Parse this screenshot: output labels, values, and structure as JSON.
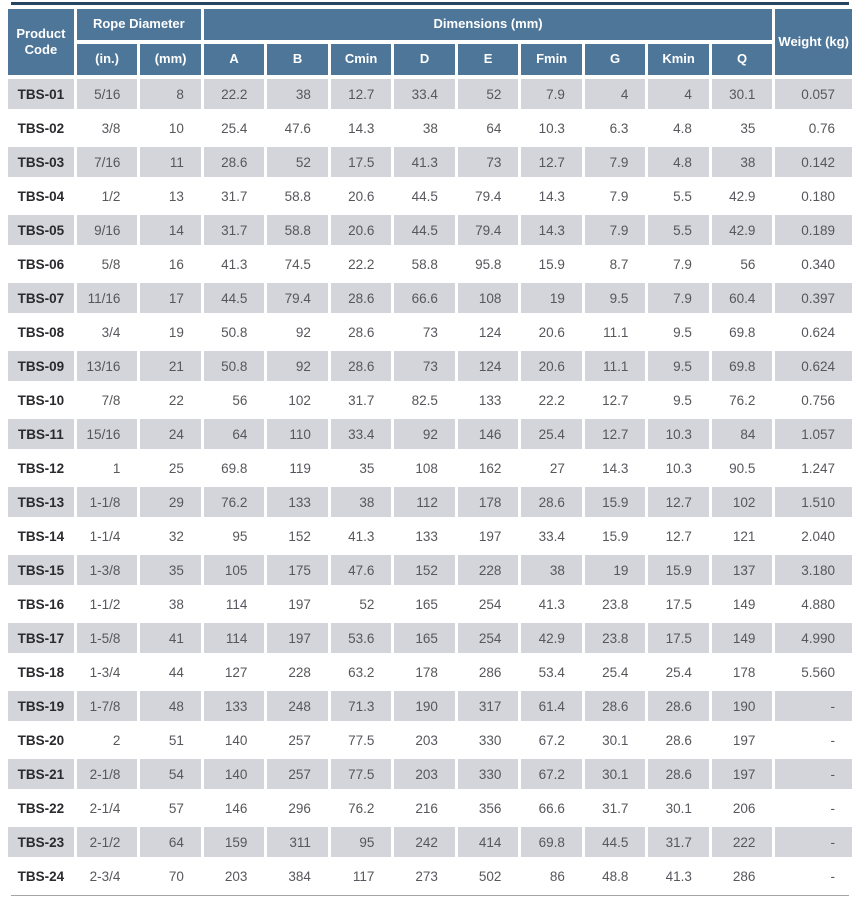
{
  "table": {
    "title": "Product specifications table",
    "header": {
      "product_code": "Product Code",
      "rope_diameter": "Rope Diameter",
      "dimensions": "Dimensions (mm)",
      "weight": "Weight (kg)",
      "subcolumns": [
        "(in.)",
        "(mm)",
        "A",
        "B",
        "Cmin",
        "D",
        "E",
        "Fmin",
        "G",
        "Kmin",
        "Q"
      ]
    },
    "rows": [
      {
        "code": "TBS-01",
        "values": [
          "5/16",
          "8",
          "22.2",
          "38",
          "12.7",
          "33.4",
          "52",
          "7.9",
          "4",
          "4",
          "30.1",
          "0.057"
        ]
      },
      {
        "code": "TBS-02",
        "values": [
          "3/8",
          "10",
          "25.4",
          "47.6",
          "14.3",
          "38",
          "64",
          "10.3",
          "6.3",
          "4.8",
          "35",
          "0.76"
        ]
      },
      {
        "code": "TBS-03",
        "values": [
          "7/16",
          "11",
          "28.6",
          "52",
          "17.5",
          "41.3",
          "73",
          "12.7",
          "7.9",
          "4.8",
          "38",
          "0.142"
        ]
      },
      {
        "code": "TBS-04",
        "values": [
          "1/2",
          "13",
          "31.7",
          "58.8",
          "20.6",
          "44.5",
          "79.4",
          "14.3",
          "7.9",
          "5.5",
          "42.9",
          "0.180"
        ]
      },
      {
        "code": "TBS-05",
        "values": [
          "9/16",
          "14",
          "31.7",
          "58.8",
          "20.6",
          "44.5",
          "79.4",
          "14.3",
          "7.9",
          "5.5",
          "42.9",
          "0.189"
        ]
      },
      {
        "code": "TBS-06",
        "values": [
          "5/8",
          "16",
          "41.3",
          "74.5",
          "22.2",
          "58.8",
          "95.8",
          "15.9",
          "8.7",
          "7.9",
          "56",
          "0.340"
        ]
      },
      {
        "code": "TBS-07",
        "values": [
          "11/16",
          "17",
          "44.5",
          "79.4",
          "28.6",
          "66.6",
          "108",
          "19",
          "9.5",
          "7.9",
          "60.4",
          "0.397"
        ]
      },
      {
        "code": "TBS-08",
        "values": [
          "3/4",
          "19",
          "50.8",
          "92",
          "28.6",
          "73",
          "124",
          "20.6",
          "11.1",
          "9.5",
          "69.8",
          "0.624"
        ]
      },
      {
        "code": "TBS-09",
        "values": [
          "13/16",
          "21",
          "50.8",
          "92",
          "28.6",
          "73",
          "124",
          "20.6",
          "11.1",
          "9.5",
          "69.8",
          "0.624"
        ]
      },
      {
        "code": "TBS-10",
        "values": [
          "7/8",
          "22",
          "56",
          "102",
          "31.7",
          "82.5",
          "133",
          "22.2",
          "12.7",
          "9.5",
          "76.2",
          "0.756"
        ]
      },
      {
        "code": "TBS-11",
        "values": [
          "15/16",
          "24",
          "64",
          "110",
          "33.4",
          "92",
          "146",
          "25.4",
          "12.7",
          "10.3",
          "84",
          "1.057"
        ]
      },
      {
        "code": "TBS-12",
        "values": [
          "1",
          "25",
          "69.8",
          "119",
          "35",
          "108",
          "162",
          "27",
          "14.3",
          "10.3",
          "90.5",
          "1.247"
        ]
      },
      {
        "code": "TBS-13",
        "values": [
          "1-1/8",
          "29",
          "76.2",
          "133",
          "38",
          "112",
          "178",
          "28.6",
          "15.9",
          "12.7",
          "102",
          "1.510"
        ]
      },
      {
        "code": "TBS-14",
        "values": [
          "1-1/4",
          "32",
          "95",
          "152",
          "41.3",
          "133",
          "197",
          "33.4",
          "15.9",
          "12.7",
          "121",
          "2.040"
        ]
      },
      {
        "code": "TBS-15",
        "values": [
          "1-3/8",
          "35",
          "105",
          "175",
          "47.6",
          "152",
          "228",
          "38",
          "19",
          "15.9",
          "137",
          "3.180"
        ]
      },
      {
        "code": "TBS-16",
        "values": [
          "1-1/2",
          "38",
          "114",
          "197",
          "52",
          "165",
          "254",
          "41.3",
          "23.8",
          "17.5",
          "149",
          "4.880"
        ]
      },
      {
        "code": "TBS-17",
        "values": [
          "1-5/8",
          "41",
          "114",
          "197",
          "53.6",
          "165",
          "254",
          "42.9",
          "23.8",
          "17.5",
          "149",
          "4.990"
        ]
      },
      {
        "code": "TBS-18",
        "values": [
          "1-3/4",
          "44",
          "127",
          "228",
          "63.2",
          "178",
          "286",
          "53.4",
          "25.4",
          "25.4",
          "178",
          "5.560"
        ]
      },
      {
        "code": "TBS-19",
        "values": [
          "1-7/8",
          "48",
          "133",
          "248",
          "71.3",
          "190",
          "317",
          "61.4",
          "28.6",
          "28.6",
          "190",
          "-"
        ]
      },
      {
        "code": "TBS-20",
        "values": [
          "2",
          "51",
          "140",
          "257",
          "77.5",
          "203",
          "330",
          "67.2",
          "30.1",
          "28.6",
          "197",
          "-"
        ]
      },
      {
        "code": "TBS-21",
        "values": [
          "2-1/8",
          "54",
          "140",
          "257",
          "77.5",
          "203",
          "330",
          "67.2",
          "30.1",
          "28.6",
          "197",
          "-"
        ]
      },
      {
        "code": "TBS-22",
        "values": [
          "2-1/4",
          "57",
          "146",
          "296",
          "76.2",
          "216",
          "356",
          "66.6",
          "31.7",
          "30.1",
          "206",
          "-"
        ]
      },
      {
        "code": "TBS-23",
        "values": [
          "2-1/2",
          "64",
          "159",
          "311",
          "95",
          "242",
          "414",
          "69.8",
          "44.5",
          "31.7",
          "222",
          "-"
        ]
      },
      {
        "code": "TBS-24",
        "values": [
          "2-3/4",
          "70",
          "203",
          "384",
          "117",
          "273",
          "502",
          "86",
          "48.8",
          "41.3",
          "286",
          "-"
        ]
      }
    ],
    "colors": {
      "header_bg": "#4d7699",
      "top_border": "#254560",
      "row_alt_bg": "#d3d5da",
      "bottom_border": "#a3a3a8"
    }
  }
}
